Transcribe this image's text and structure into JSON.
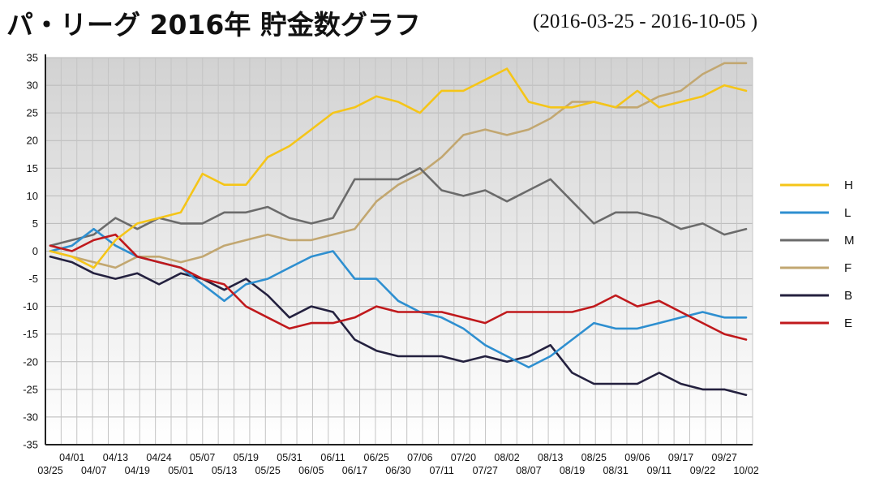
{
  "header": {
    "title": "パ・リーグ 2016年 貯金数グラフ",
    "subtitle": "(2016-03-25 - 2016-10-05 )"
  },
  "chart_data": {
    "type": "line",
    "title": "パ・リーグ 2016年 貯金数グラフ",
    "subtitle": "(2016-03-25 - 2016-10-05 )",
    "xlabel": "",
    "ylabel": "",
    "ylim": [
      -35,
      35
    ],
    "yticks": [
      35,
      30,
      25,
      20,
      15,
      10,
      5,
      0,
      -5,
      -10,
      -15,
      -20,
      -25,
      -30,
      -35
    ],
    "grid": true,
    "legend_position": "right",
    "x_dates": [
      "03/25",
      "04/01",
      "04/07",
      "04/13",
      "04/19",
      "04/24",
      "05/01",
      "05/07",
      "05/13",
      "05/19",
      "05/25",
      "05/31",
      "06/05",
      "06/11",
      "06/17",
      "06/25",
      "06/30",
      "07/06",
      "07/11",
      "07/20",
      "07/27",
      "08/02",
      "08/07",
      "08/13",
      "08/19",
      "08/25",
      "08/31",
      "09/06",
      "09/11",
      "09/17",
      "09/22",
      "09/27",
      "10/02"
    ],
    "x_ticks_upper": [
      "04/01",
      "04/13",
      "04/24",
      "05/07",
      "05/19",
      "05/31",
      "06/11",
      "06/25",
      "07/06",
      "07/20",
      "08/02",
      "08/13",
      "08/25",
      "09/06",
      "09/17",
      "09/27"
    ],
    "x_ticks_lower": [
      "03/25",
      "04/07",
      "04/19",
      "05/01",
      "05/13",
      "05/25",
      "06/05",
      "06/17",
      "06/30",
      "07/11",
      "07/27",
      "08/07",
      "08/19",
      "08/31",
      "09/11",
      "09/22",
      "10/02"
    ],
    "series": [
      {
        "name": "H",
        "color": "#f5c518",
        "values": [
          0,
          -1,
          -3,
          2,
          5,
          6,
          7,
          14,
          12,
          12,
          17,
          19,
          22,
          25,
          26,
          28,
          27,
          25,
          29,
          29,
          31,
          33,
          27,
          26,
          26,
          27,
          26,
          29,
          26,
          27,
          28,
          30,
          29
        ]
      },
      {
        "name": "L",
        "color": "#2e8fd0",
        "values": [
          0,
          1,
          4,
          1,
          -1,
          -2,
          -3,
          -6,
          -9,
          -6,
          -5,
          -3,
          -1,
          0,
          -5,
          -5,
          -9,
          -11,
          -12,
          -14,
          -17,
          -19,
          -21,
          -19,
          -16,
          -13,
          -14,
          -14,
          -13,
          -12,
          -11,
          -12,
          -12
        ]
      },
      {
        "name": "M",
        "color": "#6b6b6b",
        "values": [
          1,
          2,
          3,
          6,
          4,
          6,
          5,
          5,
          7,
          7,
          8,
          6,
          5,
          6,
          13,
          13,
          13,
          15,
          11,
          10,
          11,
          9,
          11,
          13,
          9,
          5,
          7,
          7,
          6,
          4,
          5,
          3,
          4
        ]
      },
      {
        "name": "F",
        "color": "#c2a771",
        "values": [
          0,
          -1,
          -2,
          -3,
          -1,
          -1,
          -2,
          -1,
          1,
          2,
          3,
          2,
          2,
          3,
          4,
          9,
          12,
          14,
          17,
          21,
          22,
          21,
          22,
          24,
          27,
          27,
          26,
          26,
          28,
          29,
          32,
          34,
          34
        ]
      },
      {
        "name": "B",
        "color": "#24213f",
        "values": [
          -1,
          -2,
          -4,
          -5,
          -4,
          -6,
          -4,
          -5,
          -7,
          -5,
          -8,
          -12,
          -10,
          -11,
          -16,
          -18,
          -19,
          -19,
          -19,
          -20,
          -19,
          -20,
          -19,
          -17,
          -22,
          -24,
          -24,
          -24,
          -22,
          -24,
          -25,
          -25,
          -26
        ]
      },
      {
        "name": "E",
        "color": "#c0191c",
        "values": [
          1,
          0,
          2,
          3,
          -1,
          -2,
          -3,
          -5,
          -6,
          -10,
          -12,
          -14,
          -13,
          -13,
          -12,
          -10,
          -11,
          -11,
          -11,
          -12,
          -13,
          -11,
          -11,
          -11,
          -11,
          -10,
          -8,
          -10,
          -9,
          -11,
          -13,
          -15,
          -16
        ]
      }
    ]
  }
}
